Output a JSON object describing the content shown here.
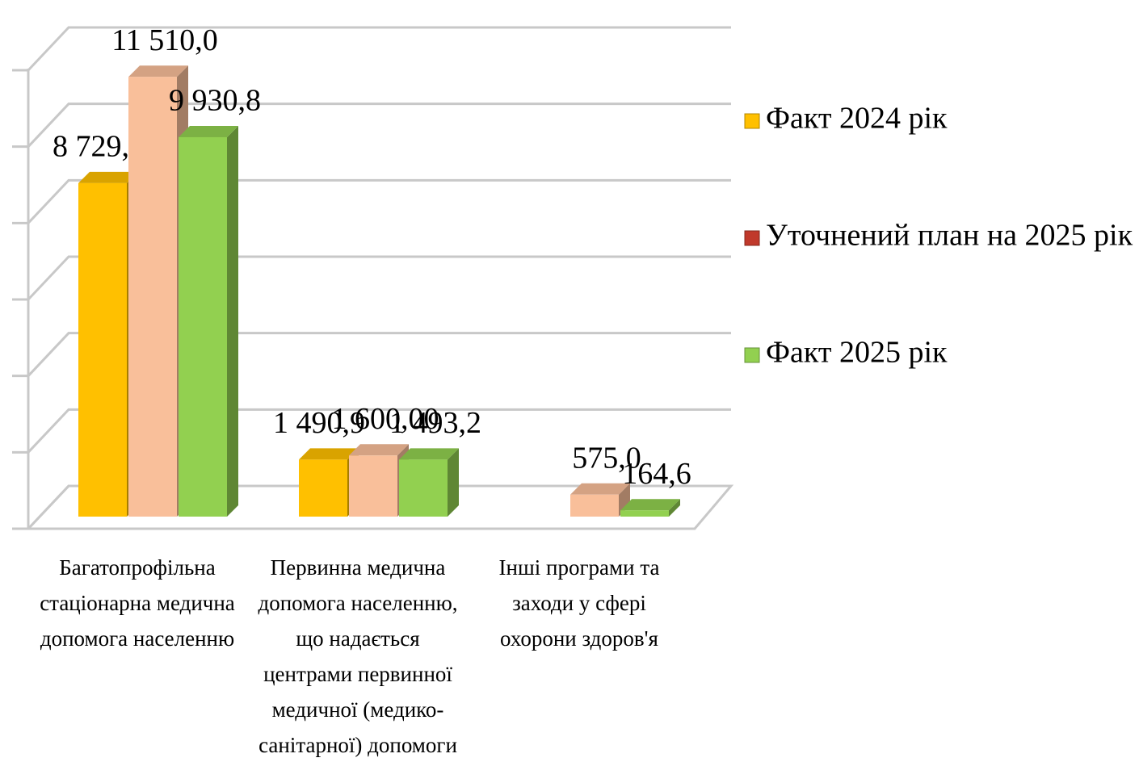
{
  "chart_data": {
    "type": "bar3d",
    "categories": [
      "Багатопрофільна\nстаціонарна медична\nдопомога населенню",
      "Первинна медична\nдопомога населенню,\nщо надається\nцентрами первинної\nмедичної (медико-\nсанітарної) допомоги",
      "Інші програми та\nзаходи у сфері\nохорони  здоров'я"
    ],
    "series": [
      {
        "name": "Факт 2024 рік",
        "color": "#ffc000",
        "legend_color": "#ffc000",
        "values": [
          8729.1,
          1490.9,
          null
        ],
        "value_labels": [
          "8 729,1",
          "1 490,9",
          null
        ]
      },
      {
        "name": "Уточнений план на 2025 рік",
        "color": "#f9bf9a",
        "legend_color": "#c0392b",
        "values": [
          11510.0,
          1600.0,
          575.0
        ],
        "value_labels": [
          "11 510,0",
          "1 600,00",
          "575,0"
        ]
      },
      {
        "name": "Факт 2025 рік",
        "color": "#92d050",
        "legend_color": "#92d050",
        "values": [
          9930.8,
          1493.2,
          164.6
        ],
        "value_labels": [
          "9 930,8",
          "1 493,2",
          "164,6"
        ]
      }
    ],
    "ylim": [
      0,
      12000
    ],
    "yticks": [
      0,
      2000,
      4000,
      6000,
      8000,
      10000,
      12000
    ],
    "grid": true,
    "legend": "right"
  }
}
